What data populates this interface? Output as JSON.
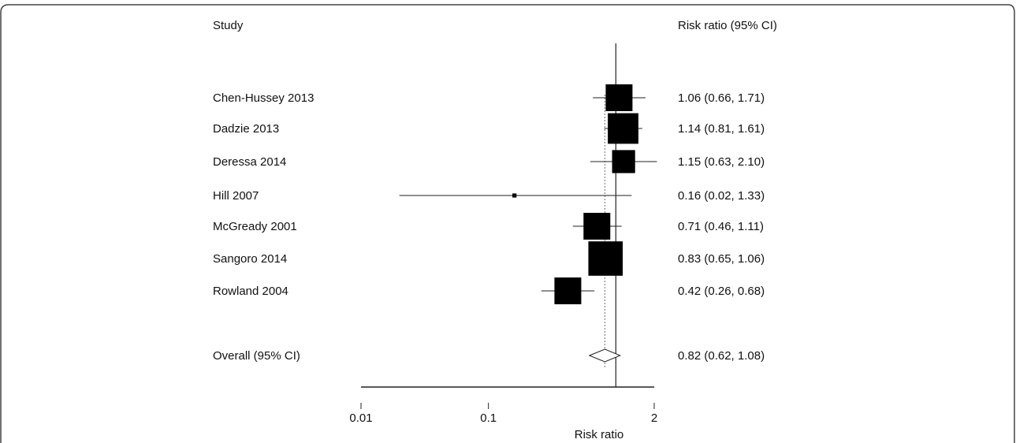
{
  "chart_data": {
    "type": "forest",
    "header_left": "Study",
    "header_right": "Risk ratio (95% CI)",
    "xlabel": "Risk ratio",
    "x_scale": "log",
    "xlim": [
      0.01,
      2
    ],
    "x_ticks": [
      {
        "value": 0.01,
        "label": "0.01"
      },
      {
        "value": 0.1,
        "label": "0.1"
      },
      {
        "value": 2,
        "label": "2"
      }
    ],
    "reference_line": 1,
    "overall_line": 0.82,
    "studies": [
      {
        "name": "Chen-Hussey 2013",
        "rr": 1.06,
        "lower": 0.66,
        "upper": 1.71,
        "ci_text": "1.06 (0.66, 1.71)",
        "weight": 1.0
      },
      {
        "name": "Dadzie 2013",
        "rr": 1.14,
        "lower": 0.81,
        "upper": 1.61,
        "ci_text": "1.14 (0.81, 1.61)",
        "weight": 1.15
      },
      {
        "name": "Deressa 2014",
        "rr": 1.15,
        "lower": 0.63,
        "upper": 2.1,
        "ci_text": "1.15 (0.63, 2.10)",
        "weight": 0.85
      },
      {
        "name": "Hill 2007",
        "rr": 0.16,
        "lower": 0.02,
        "upper": 1.33,
        "ci_text": "0.16 (0.02, 1.33)",
        "weight": 0.1
      },
      {
        "name": "McGready 2001",
        "rr": 0.71,
        "lower": 0.46,
        "upper": 1.11,
        "ci_text": "0.71 (0.46, 1.11)",
        "weight": 1.0
      },
      {
        "name": "Sangoro 2014",
        "rr": 0.83,
        "lower": 0.65,
        "upper": 1.06,
        "ci_text": "0.83 (0.65, 1.06)",
        "weight": 1.3
      },
      {
        "name": "Rowland 2004",
        "rr": 0.42,
        "lower": 0.26,
        "upper": 0.68,
        "ci_text": "0.42 (0.26, 0.68)",
        "weight": 1.0
      }
    ],
    "overall": {
      "name": "Overall (95% CI)",
      "rr": 0.82,
      "lower": 0.62,
      "upper": 1.08,
      "ci_text": "0.82 (0.62, 1.08)"
    },
    "colors": {
      "marker": "#000000",
      "line": "#333333",
      "diamond_fill": "#ffffff",
      "frame": "#444444"
    }
  }
}
